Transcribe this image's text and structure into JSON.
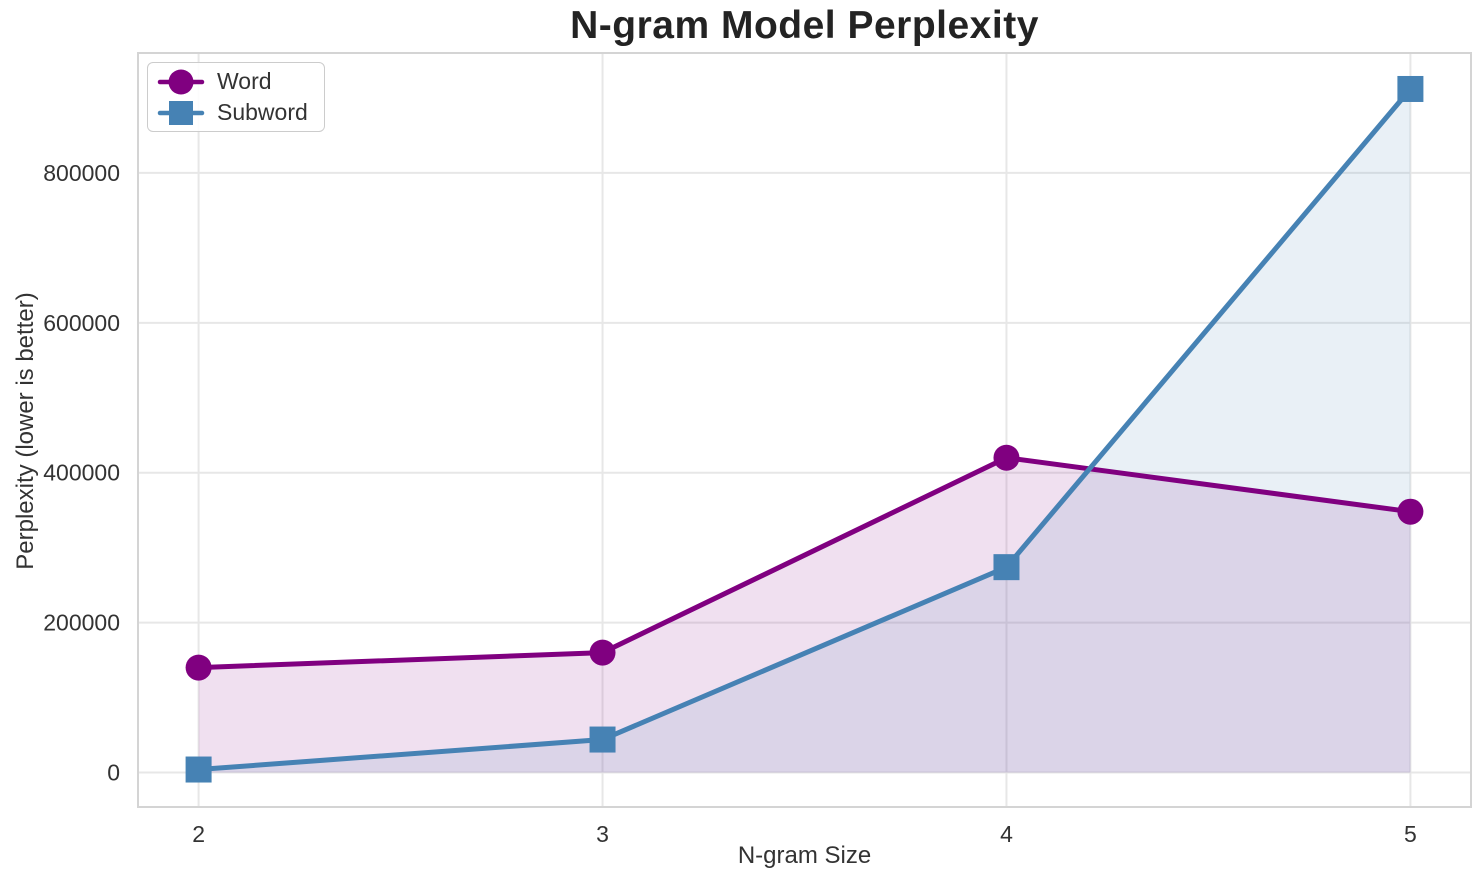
{
  "chart_data": {
    "type": "line",
    "title": "N-gram Model Perplexity",
    "xlabel": "N-gram Size",
    "ylabel": "Perplexity (lower is better)",
    "x": [
      2,
      3,
      4,
      5
    ],
    "series": [
      {
        "name": "Word",
        "color": "#800080",
        "marker": "circle",
        "values": [
          140000,
          160000,
          420000,
          348000
        ]
      },
      {
        "name": "Subword",
        "color": "#4682B4",
        "marker": "square",
        "values": [
          4000,
          44000,
          274000,
          912000
        ]
      }
    ],
    "xticks": [
      2,
      3,
      4,
      5
    ],
    "yticks": [
      0,
      200000,
      400000,
      600000,
      800000
    ],
    "ytick_labels": [
      "0",
      "200000",
      "400000",
      "600000",
      "800000"
    ],
    "xtick_labels": [
      "2",
      "3",
      "4",
      "5"
    ],
    "xlim": [
      1.85,
      5.15
    ],
    "ylim": [
      -46000,
      960000
    ],
    "fill_baseline": 0,
    "fill_opacity": 0.12,
    "grid": true,
    "grid_color": "#e7e7e7",
    "spine_color": "#d4d4d4",
    "text_color": "#333333",
    "title_color": "#232323",
    "legend_position": "upper left"
  }
}
